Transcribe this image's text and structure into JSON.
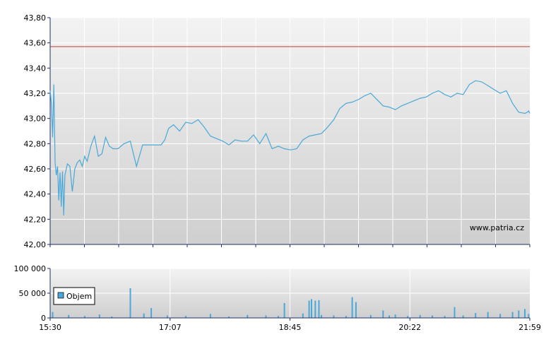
{
  "watermark": "www.patria.cz",
  "colors": {
    "price_line": "#4aa8d8",
    "reference_line": "#c0392b",
    "volume_bar": "#4aa8d8",
    "plot_bg_top": "#f3f3f3",
    "plot_bg_bottom": "#cfcfcf",
    "grid": "#ffffff",
    "axis": "#1f2f6b"
  },
  "chart_data": [
    {
      "type": "line",
      "title": "",
      "xlabel": "",
      "ylabel": "",
      "xlim": [
        "15:30",
        "21:59"
      ],
      "ylim": [
        42.0,
        43.8
      ],
      "ytick_labels": [
        "43,80",
        "43,60",
        "43,40",
        "43,20",
        "43,00",
        "42,80",
        "42,60",
        "42,40",
        "42,20",
        "42,00"
      ],
      "ytick_values": [
        43.8,
        43.6,
        43.4,
        43.2,
        43.0,
        42.8,
        42.6,
        42.4,
        42.2,
        42.0
      ],
      "reference_line": 43.57,
      "grid": true,
      "series": [
        {
          "x": [
            "15:30",
            "15:31",
            "15:32",
            "15:33",
            "15:34",
            "15:35",
            "15:36",
            "15:37",
            "15:38",
            "15:39",
            "15:40",
            "15:41",
            "15:42",
            "15:44",
            "15:46",
            "15:48",
            "15:50",
            "15:52",
            "15:54",
            "15:56",
            "15:58",
            "16:00",
            "16:03",
            "16:06",
            "16:09",
            "16:12",
            "16:15",
            "16:18",
            "16:21",
            "16:25",
            "16:30",
            "16:35",
            "16:40",
            "16:45",
            "16:50",
            "16:55",
            "17:00",
            "17:03",
            "17:06",
            "17:10",
            "17:15",
            "17:20",
            "17:25",
            "17:30",
            "17:35",
            "17:40",
            "17:45",
            "17:50",
            "17:55",
            "18:00",
            "18:05",
            "18:10",
            "18:15",
            "18:20",
            "18:25",
            "18:30",
            "18:35",
            "18:40",
            "18:45",
            "18:50",
            "18:55",
            "19:00",
            "19:05",
            "19:10",
            "19:15",
            "19:20",
            "19:25",
            "19:30",
            "19:35",
            "19:40",
            "19:45",
            "19:50",
            "19:55",
            "20:00",
            "20:05",
            "20:10",
            "20:15",
            "20:20",
            "20:25",
            "20:30",
            "20:35",
            "20:40",
            "20:45",
            "20:50",
            "20:55",
            "21:00",
            "21:05",
            "21:10",
            "21:15",
            "21:20",
            "21:25",
            "21:30",
            "21:35",
            "21:40",
            "21:45",
            "21:50",
            "21:55",
            "21:57",
            "21:58",
            "21:59"
          ],
          "y": [
            43.22,
            43.12,
            42.85,
            43.27,
            42.65,
            42.55,
            42.62,
            42.35,
            42.57,
            42.3,
            42.58,
            42.23,
            42.55,
            42.64,
            42.62,
            42.42,
            42.6,
            42.65,
            42.67,
            42.62,
            42.7,
            42.66,
            42.78,
            42.86,
            42.7,
            42.72,
            42.85,
            42.78,
            42.76,
            42.76,
            42.8,
            42.82,
            42.62,
            42.79,
            42.79,
            42.79,
            42.79,
            42.83,
            42.92,
            42.95,
            42.9,
            42.97,
            42.96,
            42.99,
            42.93,
            42.86,
            42.84,
            42.82,
            42.79,
            42.83,
            42.82,
            42.82,
            42.87,
            42.8,
            42.88,
            42.76,
            42.78,
            42.76,
            42.75,
            42.76,
            42.83,
            42.86,
            42.87,
            42.88,
            42.93,
            42.99,
            43.08,
            43.12,
            43.13,
            43.15,
            43.18,
            43.2,
            43.15,
            43.1,
            43.09,
            43.07,
            43.1,
            43.12,
            43.14,
            43.16,
            43.17,
            43.2,
            43.22,
            43.19,
            43.17,
            43.2,
            43.19,
            43.27,
            43.3,
            43.29,
            43.26,
            43.23,
            43.2,
            43.22,
            43.12,
            43.05,
            43.04,
            43.05,
            43.06,
            43.04
          ]
        }
      ]
    },
    {
      "type": "bar",
      "title": "",
      "xlabel": "",
      "ylabel": "",
      "ylim": [
        0,
        100000
      ],
      "ytick_labels": [
        "100 000",
        "50 000",
        "0"
      ],
      "ytick_values": [
        100000,
        50000,
        0
      ],
      "xtick_labels": [
        "15:30",
        "17:07",
        "18:45",
        "20:22",
        "21:59"
      ],
      "legend": "top-left",
      "grid": true,
      "series": [
        {
          "name": "Objem",
          "x": [
            "15:32",
            "15:45",
            "15:58",
            "16:10",
            "16:20",
            "16:35",
            "16:46",
            "16:52",
            "17:05",
            "17:20",
            "17:40",
            "17:55",
            "18:10",
            "18:25",
            "18:35",
            "18:40",
            "18:55",
            "19:00",
            "19:02",
            "19:05",
            "19:08",
            "19:10",
            "19:20",
            "19:30",
            "19:35",
            "19:38",
            "19:50",
            "20:00",
            "20:05",
            "20:10",
            "20:20",
            "20:30",
            "20:40",
            "20:50",
            "20:58",
            "21:05",
            "21:15",
            "21:25",
            "21:35",
            "21:45",
            "21:50",
            "21:55",
            "21:58"
          ],
          "y": [
            12000,
            6000,
            4000,
            7000,
            3000,
            60000,
            9000,
            20000,
            5000,
            4000,
            8000,
            3000,
            6000,
            5000,
            4000,
            30000,
            9000,
            35000,
            38000,
            35000,
            36000,
            6000,
            5000,
            4000,
            42000,
            32000,
            6000,
            15000,
            5000,
            7000,
            4000,
            6000,
            5000,
            4000,
            22000,
            5000,
            10000,
            12000,
            8000,
            12000,
            15000,
            18000,
            8000
          ]
        }
      ]
    }
  ]
}
